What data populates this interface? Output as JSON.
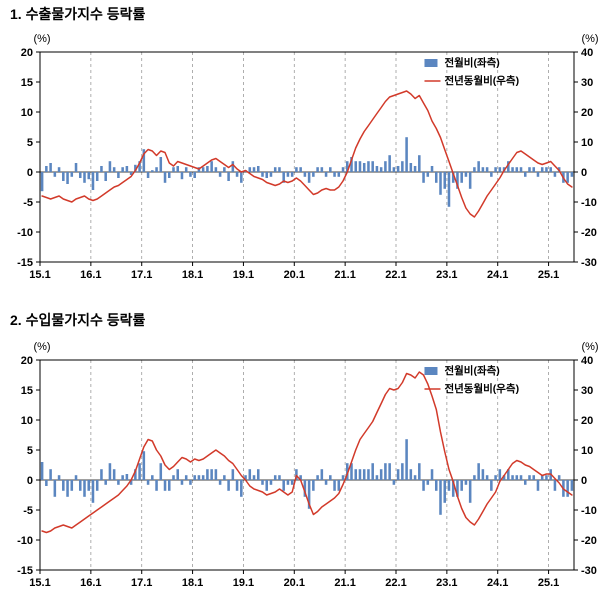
{
  "page": {
    "background": "#ffffff"
  },
  "chart_data": [
    {
      "type": "combo",
      "title": "1. 수출물가지수 등락률",
      "x_tick_labels": [
        "15.1",
        "16.1",
        "17.1",
        "18.1",
        "19.1",
        "20.1",
        "21.1",
        "22.1",
        "23.1",
        "24.1",
        "25.1"
      ],
      "x_months_per_tick": 12,
      "grid": "vertical-dashed",
      "legend_position": "top-right-inside",
      "left_axis": {
        "unit": "(%)",
        "min": -15,
        "max": 20,
        "ticks": [
          20,
          15,
          10,
          5,
          0,
          -5,
          -10,
          -15
        ]
      },
      "right_axis": {
        "unit": "(%)",
        "min": -30,
        "max": 40,
        "ticks": [
          40,
          30,
          20,
          10,
          0,
          -10,
          -20,
          -30
        ]
      },
      "series": [
        {
          "name": "전월비(좌측)",
          "type": "bar",
          "axis": "left",
          "color": "#5b86c0",
          "values": [
            -3.2,
            1.0,
            1.5,
            -0.8,
            0.8,
            -1.5,
            -2.0,
            -0.8,
            1.5,
            -1.0,
            -1.8,
            -1.2,
            -3.0,
            -1.5,
            1.0,
            -1.5,
            1.8,
            0.8,
            -1.0,
            0.8,
            1.0,
            -0.5,
            1.2,
            1.8,
            3.8,
            -1.0,
            0.3,
            0.8,
            2.5,
            -1.8,
            -1.0,
            0.8,
            1.0,
            -1.2,
            0.8,
            -0.8,
            -1.0,
            0.8,
            0.8,
            1.0,
            1.8,
            0.8,
            -0.8,
            0.8,
            -1.5,
            1.8,
            -0.8,
            -1.8,
            0.3,
            0.8,
            0.8,
            1.0,
            -0.8,
            -1.0,
            -0.8,
            0.8,
            0.8,
            -1.8,
            -0.8,
            -0.8,
            0.8,
            0.8,
            -0.8,
            -1.8,
            -0.8,
            0.8,
            0.8,
            -0.8,
            0.8,
            -0.8,
            -0.8,
            0.8,
            1.8,
            2.5,
            1.8,
            1.8,
            1.5,
            1.8,
            1.8,
            1.0,
            0.8,
            1.8,
            2.8,
            0.8,
            1.0,
            1.8,
            5.8,
            1.5,
            1.0,
            2.8,
            -1.8,
            -0.8,
            1.0,
            -1.8,
            -3.8,
            -2.8,
            -5.8,
            -1.8,
            -2.8,
            -1.8,
            -0.8,
            -2.8,
            0.8,
            1.8,
            0.8,
            0.8,
            -0.8,
            0.8,
            0.8,
            0.8,
            1.8,
            0.8,
            0.8,
            0.8,
            -0.8,
            0.8,
            0.8,
            -0.8,
            0.8,
            0.8,
            0.8,
            -0.8,
            0.8,
            -1.8,
            -1.8,
            -0.8
          ]
        },
        {
          "name": "전년동월비(우측)",
          "type": "line",
          "axis": "right",
          "color": "#d23a2a",
          "values": [
            -8,
            -8.5,
            -9,
            -8.5,
            -8,
            -9,
            -9.5,
            -10,
            -9,
            -8.5,
            -8,
            -9,
            -9.5,
            -9,
            -8,
            -7,
            -6,
            -5,
            -4.5,
            -3.5,
            -2.5,
            -1.5,
            0.5,
            3,
            6,
            7.5,
            7,
            5.5,
            7,
            6.5,
            3,
            2,
            3.5,
            3,
            2.5,
            2,
            1.5,
            1,
            2,
            3,
            4,
            4.5,
            3.5,
            2.5,
            1.5,
            2.5,
            1,
            0,
            0.5,
            -0.5,
            -1.5,
            -2,
            -2.5,
            -3.5,
            -4,
            -4.5,
            -4,
            -3,
            -3.5,
            -3,
            -2,
            -3,
            -4.5,
            -6,
            -7.5,
            -7,
            -6,
            -5.5,
            -6,
            -6,
            -5,
            -3,
            0,
            4,
            8,
            11,
            13.5,
            15.5,
            17.5,
            19.5,
            21.5,
            23.5,
            25,
            25.5,
            26,
            26.5,
            27,
            26,
            24.5,
            25.5,
            23,
            20.5,
            17,
            14.5,
            11.5,
            7.5,
            3.5,
            -0.5,
            -4.5,
            -8.5,
            -12,
            -14,
            -15,
            -13,
            -10.5,
            -8,
            -6,
            -4,
            -2,
            0.5,
            2.5,
            4.5,
            6.5,
            7,
            6,
            5,
            4,
            3,
            2.5,
            3,
            3.5,
            2,
            0.5,
            -2,
            -4,
            -5
          ]
        }
      ]
    },
    {
      "type": "combo",
      "title": "2. 수입물가지수 등락률",
      "x_tick_labels": [
        "15.1",
        "16.1",
        "17.1",
        "18.1",
        "19.1",
        "20.1",
        "21.1",
        "22.1",
        "23.1",
        "24.1",
        "25.1"
      ],
      "x_months_per_tick": 12,
      "grid": "vertical-dashed",
      "legend_position": "top-right-inside",
      "left_axis": {
        "unit": "(%)",
        "min": -15,
        "max": 20,
        "ticks": [
          20,
          15,
          10,
          5,
          0,
          -5,
          -10,
          -15
        ]
      },
      "right_axis": {
        "unit": "(%)",
        "min": -30,
        "max": 40,
        "ticks": [
          40,
          30,
          20,
          10,
          0,
          -10,
          -20,
          -30
        ]
      },
      "series": [
        {
          "name": "전월비(좌측)",
          "type": "bar",
          "axis": "left",
          "color": "#5b86c0",
          "values": [
            3.0,
            -1.0,
            1.8,
            -2.8,
            0.8,
            -1.8,
            -2.8,
            -1.8,
            0.8,
            -1.8,
            -2.8,
            -1.8,
            -3.8,
            -1.8,
            1.8,
            -0.8,
            2.8,
            1.8,
            -0.8,
            0.8,
            1.0,
            -0.8,
            1.8,
            2.8,
            4.8,
            -0.8,
            0.8,
            -1.8,
            2.8,
            -1.8,
            -1.8,
            0.8,
            1.8,
            -0.8,
            0.8,
            -0.8,
            0.8,
            0.8,
            0.8,
            1.8,
            1.8,
            1.8,
            -0.8,
            0.8,
            -1.8,
            1.8,
            -1.8,
            -2.8,
            0.8,
            1.8,
            0.8,
            1.8,
            -0.8,
            -1.8,
            -0.8,
            0.8,
            0.8,
            -1.8,
            -0.8,
            -0.8,
            1.8,
            0.8,
            -2.8,
            -4.8,
            -1.8,
            0.8,
            1.8,
            -0.8,
            0.8,
            -1.8,
            -1.8,
            0.8,
            2.8,
            2.8,
            1.8,
            1.8,
            1.8,
            1.8,
            2.8,
            0.8,
            1.8,
            2.8,
            2.8,
            -0.8,
            1.8,
            2.8,
            6.8,
            1.8,
            0.8,
            2.8,
            -1.8,
            -0.8,
            1.8,
            -1.8,
            -5.8,
            -3.8,
            -1.8,
            -2.8,
            -2.8,
            -1.8,
            -0.8,
            -3.8,
            0.8,
            2.8,
            1.8,
            0.8,
            -1.8,
            0.8,
            1.8,
            0.8,
            1.8,
            0.8,
            0.8,
            0.8,
            -0.8,
            0.8,
            0.8,
            -1.8,
            0.8,
            0.8,
            1.8,
            -1.8,
            0.8,
            -2.8,
            -2.8,
            -1.8
          ]
        },
        {
          "name": "전년동월비(우측)",
          "type": "line",
          "axis": "right",
          "color": "#d23a2a",
          "values": [
            -17,
            -17.5,
            -17,
            -16,
            -15.5,
            -15,
            -15.5,
            -16,
            -15,
            -14,
            -13,
            -12,
            -11,
            -10,
            -9,
            -8,
            -7,
            -6,
            -5,
            -3.5,
            -2,
            0,
            3,
            7,
            11,
            13.5,
            13,
            10,
            8,
            5,
            3.5,
            4.5,
            6,
            7.5,
            7,
            6,
            7,
            6.5,
            7,
            8,
            9,
            10,
            9,
            8,
            6.5,
            5.5,
            3.5,
            1.5,
            0,
            -2,
            -3,
            -3.5,
            -4,
            -5,
            -4.5,
            -4,
            -3,
            -4,
            -5,
            -4,
            1.5,
            0,
            -4,
            -8,
            -11.5,
            -10.5,
            -9,
            -8,
            -7,
            -6,
            -4.5,
            -1.5,
            2,
            6,
            10,
            13.5,
            15.5,
            17.5,
            19.5,
            22.5,
            25.5,
            28.5,
            30.5,
            30,
            30.5,
            32.5,
            35.5,
            35,
            34,
            36,
            35,
            32,
            28,
            23.5,
            16,
            9.5,
            3.5,
            -0.5,
            -5.5,
            -9.5,
            -12.5,
            -14,
            -15,
            -13,
            -10.5,
            -8,
            -6,
            -4,
            -0.5,
            1.5,
            3.5,
            5.5,
            6.5,
            6,
            5,
            4.5,
            3.5,
            2.5,
            1.5,
            2,
            2,
            0.5,
            -1,
            -3,
            -4,
            -5
          ]
        }
      ]
    }
  ]
}
